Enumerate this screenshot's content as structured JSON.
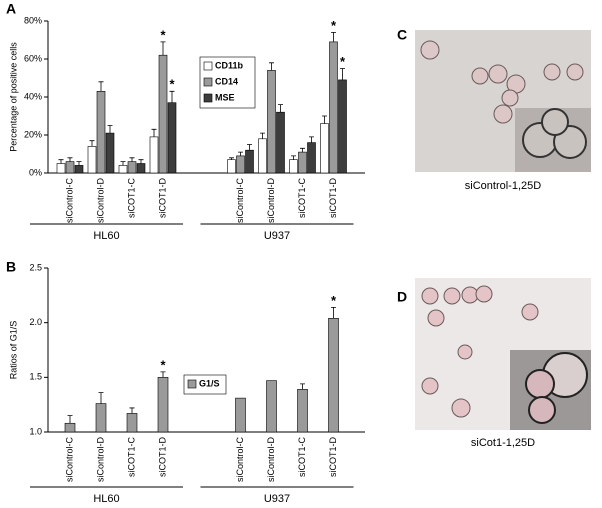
{
  "chart_data": [
    {
      "type": "bar",
      "panel": "A",
      "ylabel": "Percentage of positive cells",
      "groups": [
        {
          "label": "HL60",
          "categories": [
            "siControl-C",
            "siControl-D",
            "siCOT1-C",
            "siCOT1-D"
          ]
        },
        {
          "label": "U937",
          "categories": [
            "siControl-C",
            "siControl-D",
            "siCOT1-C",
            "siCOT1-D"
          ]
        }
      ],
      "series": [
        {
          "name": "CD11b",
          "color": "#ffffff",
          "values": [
            5,
            14,
            4,
            19,
            7,
            18,
            7,
            26
          ],
          "errors": [
            2,
            3,
            2,
            4,
            1,
            3,
            2,
            4
          ],
          "markers": [
            null,
            null,
            null,
            null,
            null,
            null,
            null,
            null
          ]
        },
        {
          "name": "CD14",
          "color": "#9a9a9a",
          "values": [
            6,
            43,
            6,
            62,
            9,
            54,
            11,
            69
          ],
          "errors": [
            2,
            5,
            2,
            7,
            2,
            4,
            2,
            5
          ],
          "markers": [
            null,
            null,
            null,
            "*",
            null,
            null,
            null,
            "*"
          ]
        },
        {
          "name": "MSE",
          "color": "#3d3d3d",
          "values": [
            4,
            21,
            5,
            37,
            12,
            32,
            16,
            49
          ],
          "errors": [
            2,
            4,
            2,
            6,
            3,
            4,
            3,
            6
          ],
          "markers": [
            null,
            null,
            null,
            "*",
            null,
            null,
            null,
            "*"
          ]
        }
      ],
      "ylim": [
        0,
        80
      ],
      "yticks": [
        {
          "value": 0,
          "label": "0%"
        },
        {
          "value": 20,
          "label": "20%"
        },
        {
          "value": 40,
          "label": "40%"
        },
        {
          "value": 60,
          "label": "60%"
        },
        {
          "value": 80,
          "label": "80%"
        }
      ]
    },
    {
      "type": "bar",
      "panel": "B",
      "ylabel": "Ratios of G1/S",
      "groups": [
        {
          "label": "HL60",
          "categories": [
            "siControl-C",
            "siControl-D",
            "siCOT1-C",
            "siCOT1-D"
          ]
        },
        {
          "label": "U937",
          "categories": [
            "siControl-C",
            "siControl-D",
            "siCOT1-C",
            "siCOT1-D"
          ]
        }
      ],
      "series": [
        {
          "name": "G1/S",
          "color": "#9a9a9a",
          "values": [
            1.08,
            1.26,
            1.17,
            1.5,
            1.31,
            1.47,
            1.39,
            2.04
          ],
          "errors": [
            0.07,
            0.1,
            0.05,
            0.05,
            null,
            null,
            0.05,
            0.1
          ],
          "markers": [
            null,
            null,
            null,
            "*",
            null,
            null,
            null,
            "*"
          ]
        }
      ],
      "ylim": [
        1.0,
        2.5
      ],
      "yticks": [
        {
          "value": 1.0,
          "label": "1.0"
        },
        1.5,
        {
          "value": 2.0,
          "label": "2.0"
        },
        2.5
      ]
    }
  ],
  "images": [
    {
      "panel": "C",
      "caption": "siControl-1,25D"
    },
    {
      "panel": "D",
      "caption": "siCot1-1,25D"
    }
  ]
}
